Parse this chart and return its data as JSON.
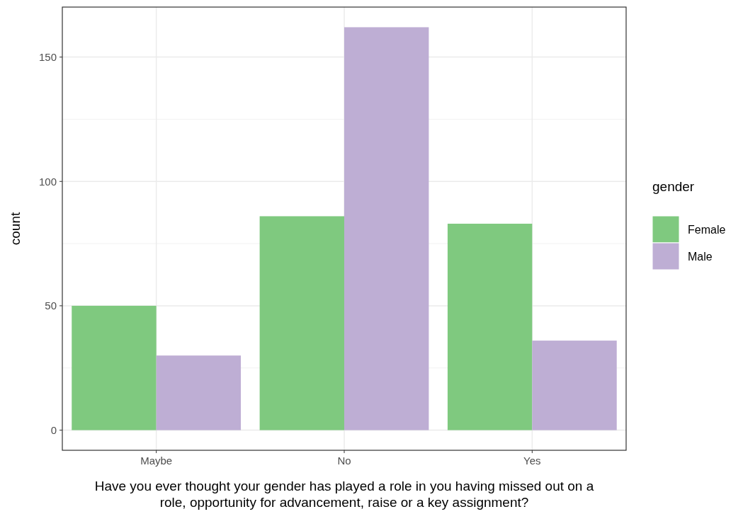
{
  "chart_data": {
    "type": "bar",
    "xlabel": "Have you ever thought your gender has played a role in you having missed out on a role, opportunity for advancement, raise or a key assignment?",
    "ylabel": "count",
    "legend_title": "gender",
    "categories": [
      "Maybe",
      "No",
      "Yes"
    ],
    "series": [
      {
        "name": "Female",
        "color": "#7fc97f",
        "values": [
          50,
          86,
          83
        ]
      },
      {
        "name": "Male",
        "color": "#beaed4",
        "values": [
          30,
          162,
          36
        ]
      }
    ],
    "ylim": [
      -8.1,
      170.1
    ],
    "yticks": [
      0,
      50,
      100,
      150
    ],
    "grid": true,
    "legend": "right"
  }
}
